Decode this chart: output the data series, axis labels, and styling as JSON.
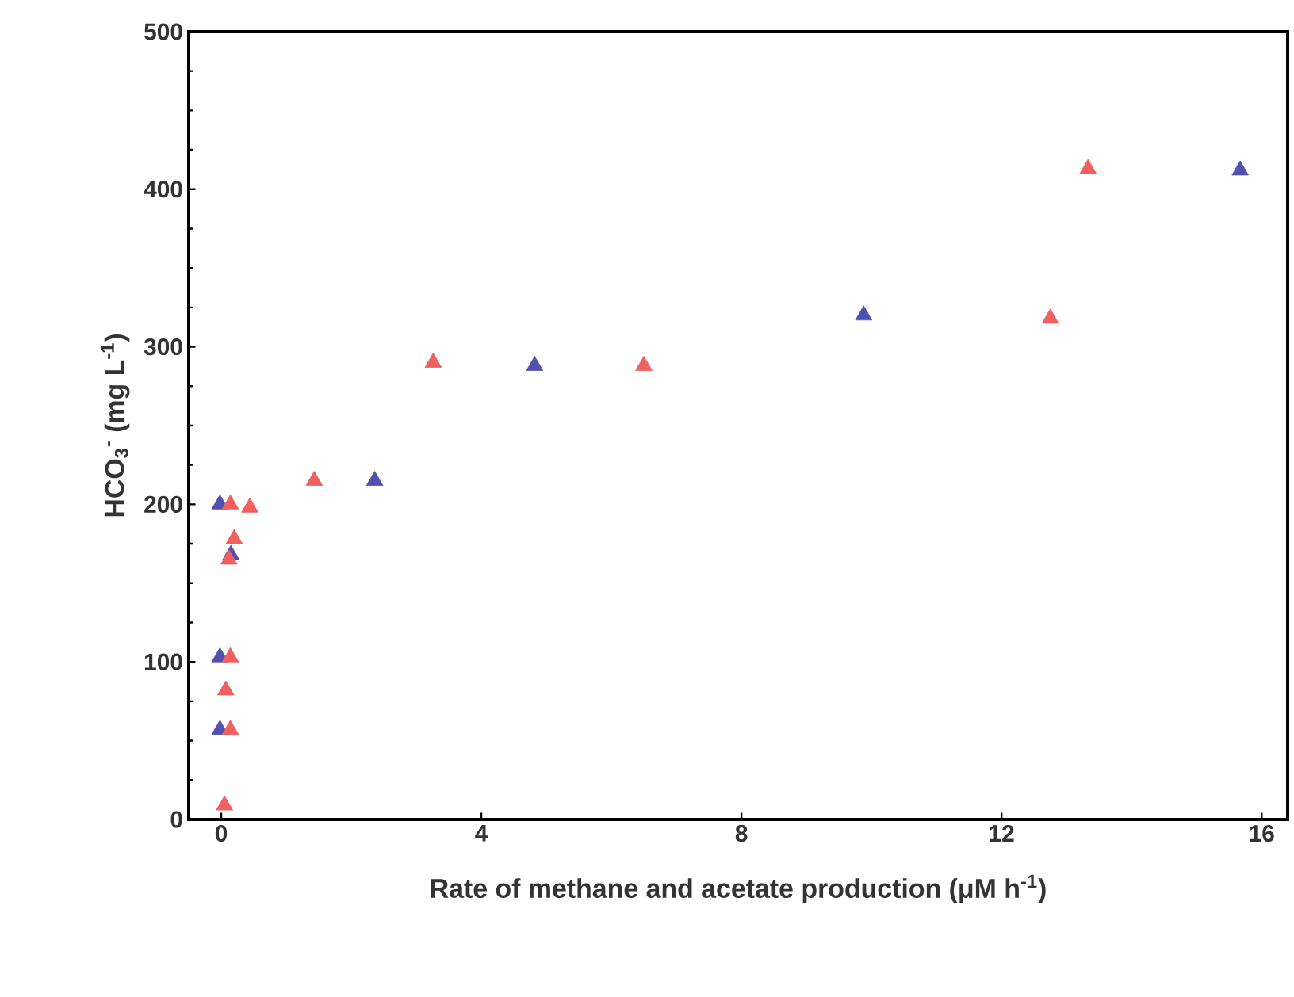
{
  "chart_data": {
    "type": "scatter",
    "xlabel": "Rate of methane and acetate production (μM h$^{-1}$)",
    "ylabel": "HCO$_{3}$$^{-}$ (mg L$^{-1}$)",
    "marker": "triangle",
    "grid": false,
    "xlim": [
      -0.5,
      16.4
    ],
    "ylim": [
      0,
      500
    ],
    "xticks": [
      0,
      4,
      8,
      12,
      16
    ],
    "yticks": [
      0,
      100,
      200,
      300,
      400,
      500
    ],
    "series": [
      {
        "color": "#5050b0",
        "x": [
          -0.02,
          0.15,
          -0.02,
          -0.02,
          2.36,
          4.82,
          9.88,
          15.67
        ],
        "values": [
          200,
          168,
          103,
          57,
          215,
          288,
          320,
          412
        ]
      },
      {
        "color": "#f06060",
        "x": [
          0.14,
          0.44,
          0.2,
          0.12,
          0.14,
          0.07,
          0.14,
          0.05,
          1.43,
          3.26,
          6.5,
          12.75,
          13.33
        ],
        "values": [
          200,
          198,
          178,
          165,
          103,
          82,
          57,
          9,
          215,
          290,
          288,
          318,
          413
        ]
      }
    ]
  }
}
